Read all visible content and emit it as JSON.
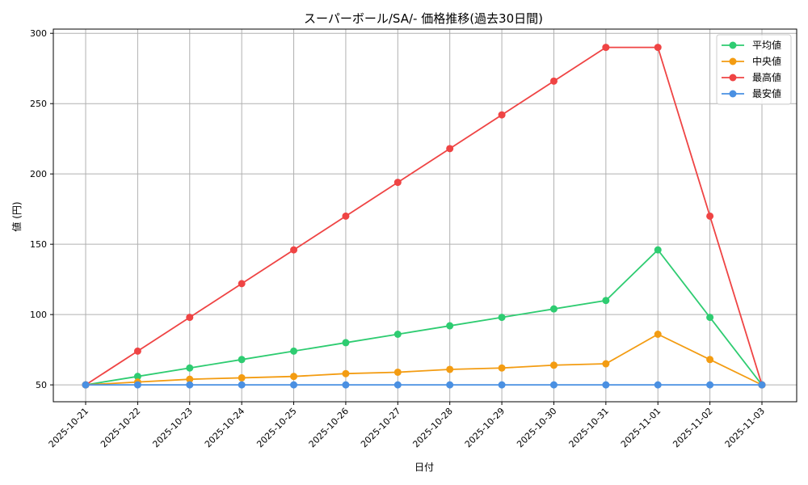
{
  "chart_data": {
    "type": "line",
    "title": "スーパーボール/SA/- 価格推移(過去30日間)",
    "xlabel": "日付",
    "ylabel": "値 (円)",
    "categories": [
      "2025-10-21",
      "2025-10-22",
      "2025-10-23",
      "2025-10-24",
      "2025-10-25",
      "2025-10-26",
      "2025-10-27",
      "2025-10-28",
      "2025-10-29",
      "2025-10-30",
      "2025-10-31",
      "2025-11-01",
      "2025-11-02",
      "2025-11-03"
    ],
    "ylim": [
      38,
      303
    ],
    "yticks": [
      50,
      100,
      150,
      200,
      250,
      300
    ],
    "grid": true,
    "legend_position": "top-right",
    "series": [
      {
        "name": "平均値",
        "color": "#2ecc71",
        "values": [
          50,
          56,
          62,
          68,
          74,
          80,
          86,
          92,
          98,
          104,
          110,
          146,
          98,
          50
        ]
      },
      {
        "name": "中央値",
        "color": "#f39c12",
        "values": [
          50,
          52,
          54,
          55,
          56,
          58,
          59,
          61,
          62,
          64,
          65,
          86,
          68,
          50
        ]
      },
      {
        "name": "最高値",
        "color": "#ef4444",
        "values": [
          50,
          74,
          98,
          122,
          146,
          170,
          194,
          218,
          242,
          266,
          290,
          290,
          170,
          50
        ]
      },
      {
        "name": "最安値",
        "color": "#4a90e2",
        "values": [
          50,
          50,
          50,
          50,
          50,
          50,
          50,
          50,
          50,
          50,
          50,
          50,
          50,
          50
        ]
      }
    ]
  }
}
